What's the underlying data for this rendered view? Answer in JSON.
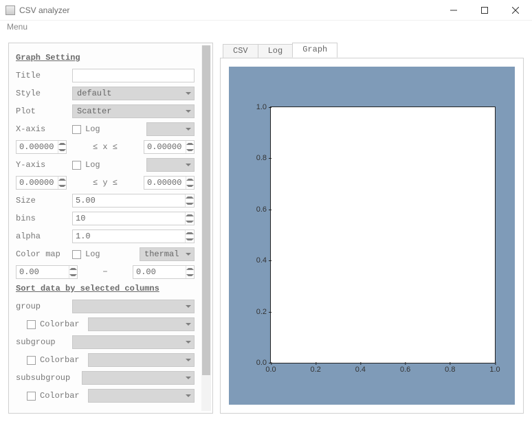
{
  "window": {
    "title": "CSV analyzer",
    "menu": "Menu"
  },
  "settings": {
    "header": "Graph Setting",
    "title_label": "Title",
    "title_value": "",
    "style_label": "Style",
    "style_value": "default",
    "plot_label": "Plot",
    "plot_value": "Scatter",
    "xaxis_label": "X-axis",
    "log_label": "Log",
    "x_min": "0.00000",
    "x_sym": "≤  x  ≤",
    "x_max": "0.00000",
    "yaxis_label": "Y-axis",
    "y_min": "0.00000",
    "y_sym": "≤  y  ≤",
    "y_max": "0.00000",
    "size_label": "Size",
    "size_value": "5.00",
    "bins_label": "bins",
    "bins_value": "10",
    "alpha_label": "alpha",
    "alpha_value": "1.0",
    "colormap_label": "Color map",
    "colormap_value": "thermal",
    "cmap_min": "0.00",
    "cmap_sep": "−",
    "cmap_max": "0.00"
  },
  "sort": {
    "header": "Sort data by selected columns",
    "group_label": "group",
    "colorbar_label": "Colorbar",
    "subgroup_label": "subgroup",
    "subsubgroup_label": "subsubgroup"
  },
  "tabs": {
    "csv": "CSV",
    "log": "Log",
    "graph": "Graph"
  },
  "chart": {
    "type": "scatter",
    "background_color": "#7f9bb8",
    "plot_background": "#ffffff",
    "axis_color": "#222222",
    "tick_fontsize": 11,
    "xlim": [
      0.0,
      1.0
    ],
    "ylim": [
      0.0,
      1.0
    ],
    "xticks": [
      0.0,
      0.2,
      0.4,
      0.6,
      0.8,
      1.0
    ],
    "yticks": [
      0.0,
      0.2,
      0.4,
      0.6,
      0.8,
      1.0
    ],
    "xtick_labels": [
      "0.0",
      "0.2",
      "0.4",
      "0.6",
      "0.8",
      "1.0"
    ],
    "ytick_labels": [
      "0.0",
      "0.2",
      "0.4",
      "0.6",
      "0.8",
      "1.0"
    ]
  }
}
